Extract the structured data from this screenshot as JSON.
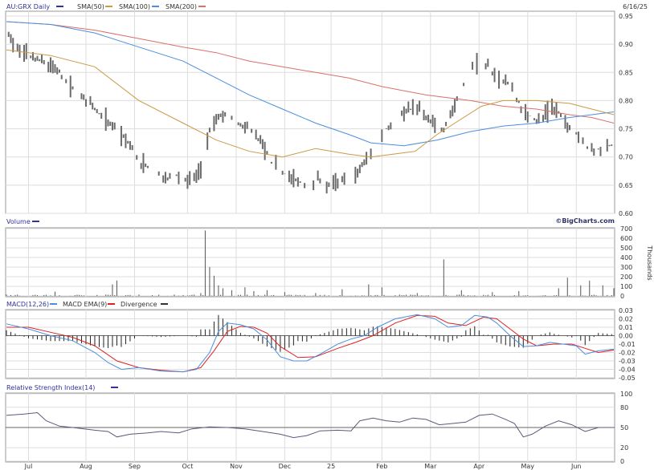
{
  "chart_data": [
    {
      "type": "ohlc",
      "panel": "price",
      "title": "AU:GRX Daily",
      "date_label": "6/16/25",
      "legend": [
        {
          "name": "SMA(50)",
          "color": "#cc9944"
        },
        {
          "name": "SMA(100)",
          "color": "#4a8fdf"
        },
        {
          "name": "SMA(200)",
          "color": "#d9706a"
        }
      ],
      "title_color": "#333399",
      "bar_color": "#6a6a6a",
      "ylim": [
        0.6,
        0.95
      ],
      "yticks": [
        "0.95",
        "0.90",
        "0.85",
        "0.80",
        "0.75",
        "0.70",
        "0.65",
        "0.60"
      ],
      "watermark": "©BigCharts.com",
      "close_points": [
        [
          0,
          0.93
        ],
        [
          4,
          0.89
        ],
        [
          10,
          0.88
        ],
        [
          16,
          0.87
        ],
        [
          22,
          0.86
        ],
        [
          30,
          0.82
        ],
        [
          36,
          0.8
        ],
        [
          44,
          0.77
        ],
        [
          50,
          0.75
        ],
        [
          56,
          0.72
        ],
        [
          60,
          0.69
        ],
        [
          66,
          0.68
        ],
        [
          72,
          0.66
        ],
        [
          76,
          0.67
        ],
        [
          82,
          0.66
        ],
        [
          88,
          0.67
        ],
        [
          92,
          0.75
        ],
        [
          96,
          0.77
        ],
        [
          100,
          0.78
        ],
        [
          104,
          0.76
        ],
        [
          110,
          0.75
        ],
        [
          116,
          0.72
        ],
        [
          120,
          0.69
        ],
        [
          126,
          0.67
        ],
        [
          130,
          0.66
        ],
        [
          136,
          0.65
        ],
        [
          140,
          0.66
        ],
        [
          146,
          0.65
        ],
        [
          152,
          0.66
        ],
        [
          158,
          0.67
        ],
        [
          162,
          0.69
        ],
        [
          168,
          0.72
        ],
        [
          172,
          0.75
        ],
        [
          176,
          0.77
        ],
        [
          180,
          0.78
        ],
        [
          186,
          0.79
        ],
        [
          192,
          0.76
        ],
        [
          198,
          0.75
        ],
        [
          204,
          0.8
        ],
        [
          210,
          0.86
        ],
        [
          214,
          0.87
        ],
        [
          218,
          0.86
        ],
        [
          222,
          0.84
        ],
        [
          228,
          0.83
        ],
        [
          234,
          0.78
        ],
        [
          238,
          0.77
        ],
        [
          242,
          0.76
        ],
        [
          246,
          0.79
        ],
        [
          250,
          0.78
        ],
        [
          254,
          0.76
        ],
        [
          258,
          0.74
        ],
        [
          262,
          0.72
        ],
        [
          266,
          0.71
        ],
        [
          270,
          0.72
        ],
        [
          275,
          0.72
        ]
      ],
      "sma50": [
        [
          0,
          0.89
        ],
        [
          20,
          0.88
        ],
        [
          40,
          0.86
        ],
        [
          60,
          0.8
        ],
        [
          80,
          0.76
        ],
        [
          95,
          0.73
        ],
        [
          110,
          0.71
        ],
        [
          125,
          0.7
        ],
        [
          140,
          0.715
        ],
        [
          155,
          0.705
        ],
        [
          165,
          0.7
        ],
        [
          175,
          0.705
        ],
        [
          185,
          0.71
        ],
        [
          195,
          0.74
        ],
        [
          205,
          0.765
        ],
        [
          215,
          0.79
        ],
        [
          225,
          0.8
        ],
        [
          240,
          0.8
        ],
        [
          255,
          0.795
        ],
        [
          265,
          0.785
        ],
        [
          275,
          0.775
        ]
      ],
      "sma100": [
        [
          0,
          0.94
        ],
        [
          20,
          0.935
        ],
        [
          40,
          0.92
        ],
        [
          60,
          0.895
        ],
        [
          80,
          0.87
        ],
        [
          95,
          0.84
        ],
        [
          110,
          0.81
        ],
        [
          125,
          0.785
        ],
        [
          140,
          0.76
        ],
        [
          155,
          0.74
        ],
        [
          165,
          0.725
        ],
        [
          180,
          0.72
        ],
        [
          195,
          0.73
        ],
        [
          210,
          0.745
        ],
        [
          225,
          0.755
        ],
        [
          240,
          0.76
        ],
        [
          255,
          0.77
        ],
        [
          265,
          0.775
        ],
        [
          275,
          0.78
        ]
      ],
      "sma200": [
        [
          0,
          0.94
        ],
        [
          20,
          0.935
        ],
        [
          40,
          0.925
        ],
        [
          60,
          0.91
        ],
        [
          80,
          0.895
        ],
        [
          95,
          0.885
        ],
        [
          110,
          0.87
        ],
        [
          125,
          0.86
        ],
        [
          140,
          0.85
        ],
        [
          155,
          0.84
        ],
        [
          170,
          0.825
        ],
        [
          190,
          0.81
        ],
        [
          210,
          0.8
        ],
        [
          225,
          0.79
        ],
        [
          240,
          0.785
        ],
        [
          255,
          0.775
        ],
        [
          265,
          0.77
        ],
        [
          275,
          0.76
        ]
      ]
    },
    {
      "type": "bar",
      "panel": "volume",
      "title": "Volume",
      "title_color": "#333399",
      "yunit_label": "Thousands",
      "ylim": [
        0,
        700
      ],
      "yticks": [
        "700",
        "600",
        "500",
        "400",
        "300",
        "200",
        "100",
        "0"
      ],
      "bar_color": "#555555",
      "spikes": [
        [
          22,
          45
        ],
        [
          48,
          120
        ],
        [
          50,
          160
        ],
        [
          88,
          30
        ],
        [
          90,
          680
        ],
        [
          92,
          300
        ],
        [
          94,
          210
        ],
        [
          96,
          110
        ],
        [
          98,
          80
        ],
        [
          102,
          60
        ],
        [
          108,
          90
        ],
        [
          112,
          50
        ],
        [
          118,
          60
        ],
        [
          126,
          40
        ],
        [
          140,
          30
        ],
        [
          152,
          70
        ],
        [
          164,
          120
        ],
        [
          170,
          90
        ],
        [
          186,
          30
        ],
        [
          198,
          380
        ],
        [
          206,
          60
        ],
        [
          220,
          40
        ],
        [
          232,
          50
        ],
        [
          250,
          80
        ],
        [
          254,
          190
        ],
        [
          260,
          110
        ],
        [
          264,
          160
        ],
        [
          270,
          110
        ],
        [
          275,
          80
        ]
      ],
      "base_level": 15
    },
    {
      "type": "line",
      "panel": "macd",
      "title": "MACD(12,26)",
      "legend": [
        {
          "name": "MACD EMA(9)",
          "color": "#4a8fdf"
        },
        {
          "name": "Divergence",
          "color": "#333333"
        }
      ],
      "title_color": "#333399",
      "ylim": [
        -0.05,
        0.03
      ],
      "yticks": [
        "0.03",
        "0.02",
        "0.01",
        "0.00",
        "-0.01",
        "-0.02",
        "-0.03",
        "-0.04",
        "-0.05"
      ],
      "macd": [
        [
          0,
          0.014
        ],
        [
          10,
          0.008
        ],
        [
          20,
          0.0
        ],
        [
          30,
          -0.006
        ],
        [
          40,
          -0.02
        ],
        [
          46,
          -0.032
        ],
        [
          52,
          -0.04
        ],
        [
          60,
          -0.038
        ],
        [
          70,
          -0.042
        ],
        [
          80,
          -0.043
        ],
        [
          86,
          -0.04
        ],
        [
          92,
          -0.02
        ],
        [
          96,
          0.005
        ],
        [
          100,
          0.015
        ],
        [
          106,
          0.013
        ],
        [
          112,
          0.008
        ],
        [
          118,
          -0.005
        ],
        [
          124,
          -0.025
        ],
        [
          130,
          -0.03
        ],
        [
          136,
          -0.03
        ],
        [
          142,
          -0.022
        ],
        [
          150,
          -0.01
        ],
        [
          156,
          -0.004
        ],
        [
          162,
          0.0
        ],
        [
          168,
          0.01
        ],
        [
          176,
          0.02
        ],
        [
          186,
          0.025
        ],
        [
          194,
          0.02
        ],
        [
          200,
          0.01
        ],
        [
          206,
          0.012
        ],
        [
          212,
          0.024
        ],
        [
          218,
          0.022
        ],
        [
          222,
          0.015
        ],
        [
          228,
          0.0
        ],
        [
          234,
          -0.013
        ],
        [
          240,
          -0.012
        ],
        [
          246,
          -0.008
        ],
        [
          252,
          -0.01
        ],
        [
          258,
          -0.012
        ],
        [
          262,
          -0.022
        ],
        [
          268,
          -0.018
        ],
        [
          275,
          -0.016
        ]
      ],
      "signal": [
        [
          0,
          0.01
        ],
        [
          10,
          0.01
        ],
        [
          20,
          0.004
        ],
        [
          30,
          -0.002
        ],
        [
          40,
          -0.012
        ],
        [
          50,
          -0.03
        ],
        [
          60,
          -0.038
        ],
        [
          70,
          -0.041
        ],
        [
          80,
          -0.043
        ],
        [
          88,
          -0.038
        ],
        [
          94,
          -0.018
        ],
        [
          100,
          0.005
        ],
        [
          106,
          0.011
        ],
        [
          112,
          0.01
        ],
        [
          118,
          0.003
        ],
        [
          124,
          -0.013
        ],
        [
          132,
          -0.026
        ],
        [
          140,
          -0.025
        ],
        [
          150,
          -0.015
        ],
        [
          158,
          -0.008
        ],
        [
          166,
          0.0
        ],
        [
          176,
          0.015
        ],
        [
          186,
          0.024
        ],
        [
          194,
          0.023
        ],
        [
          200,
          0.015
        ],
        [
          208,
          0.012
        ],
        [
          216,
          0.022
        ],
        [
          222,
          0.02
        ],
        [
          228,
          0.008
        ],
        [
          234,
          -0.004
        ],
        [
          240,
          -0.012
        ],
        [
          248,
          -0.01
        ],
        [
          256,
          -0.01
        ],
        [
          262,
          -0.015
        ],
        [
          268,
          -0.02
        ],
        [
          275,
          -0.017
        ]
      ],
      "macd_color": "#4a8fdf",
      "signal_color": "#dd2222"
    },
    {
      "type": "line",
      "panel": "rsi",
      "title": "Relative Strength Index(14)",
      "title_color": "#333399",
      "ylim": [
        0,
        100
      ],
      "yticks": [
        "100",
        "80",
        "50",
        "20",
        "0"
      ],
      "line_color": "#5a5a7a",
      "rsi": [
        [
          0,
          68
        ],
        [
          8,
          70
        ],
        [
          14,
          72
        ],
        [
          18,
          60
        ],
        [
          24,
          52
        ],
        [
          30,
          50
        ],
        [
          40,
          46
        ],
        [
          46,
          44
        ],
        [
          50,
          36
        ],
        [
          56,
          40
        ],
        [
          64,
          42
        ],
        [
          70,
          44
        ],
        [
          78,
          42
        ],
        [
          84,
          48
        ],
        [
          92,
          51
        ],
        [
          100,
          50
        ],
        [
          108,
          48
        ],
        [
          116,
          44
        ],
        [
          124,
          40
        ],
        [
          130,
          35
        ],
        [
          136,
          38
        ],
        [
          142,
          45
        ],
        [
          150,
          46
        ],
        [
          156,
          45
        ],
        [
          160,
          60
        ],
        [
          166,
          64
        ],
        [
          172,
          60
        ],
        [
          178,
          58
        ],
        [
          184,
          64
        ],
        [
          190,
          62
        ],
        [
          196,
          54
        ],
        [
          202,
          56
        ],
        [
          208,
          58
        ],
        [
          214,
          68
        ],
        [
          220,
          70
        ],
        [
          226,
          62
        ],
        [
          230,
          56
        ],
        [
          234,
          36
        ],
        [
          238,
          40
        ],
        [
          244,
          52
        ],
        [
          250,
          60
        ],
        [
          256,
          54
        ],
        [
          262,
          44
        ],
        [
          268,
          50
        ],
        [
          275,
          50
        ]
      ],
      "midline": 50
    }
  ],
  "x_axis": {
    "labels": [
      "Jul",
      "Aug",
      "Sep",
      "Oct",
      "Nov",
      "Dec",
      "25",
      "Feb",
      "Mar",
      "Apr",
      "May",
      "Jun"
    ],
    "positions": [
      10,
      36,
      58,
      82,
      104,
      126,
      147,
      170,
      192,
      214,
      236,
      258
    ],
    "n_days": 276
  }
}
